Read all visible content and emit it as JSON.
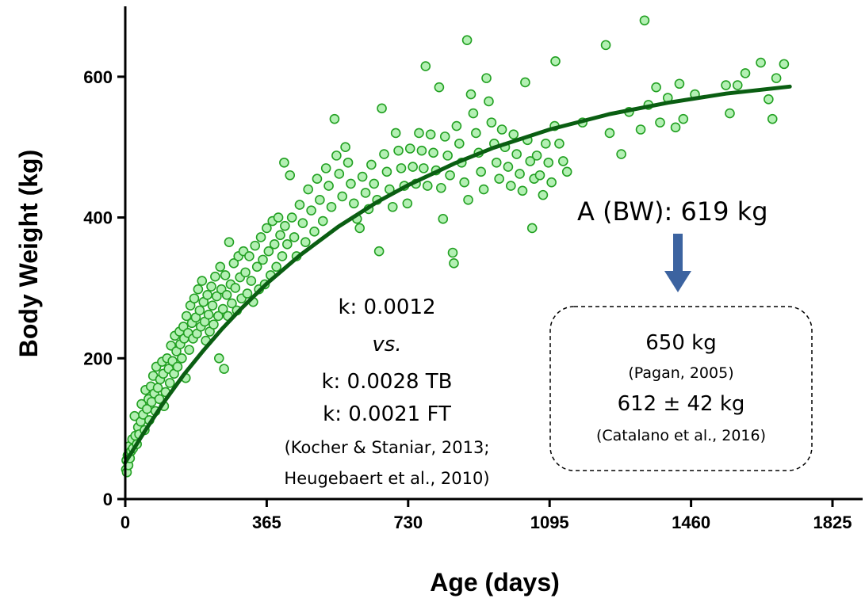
{
  "chart_data": {
    "type": "scatter",
    "xlabel": "Age (days)",
    "ylabel": "Body Weight (kg)",
    "xlim": [
      0,
      1825
    ],
    "ylim": [
      0,
      700
    ],
    "xticks": [
      0,
      365,
      730,
      1095,
      1460,
      1825
    ],
    "yticks": [
      0,
      200,
      400,
      600
    ],
    "grid": false,
    "colors": {
      "points_fill": "#b3f0b3",
      "points_stroke": "#22a022",
      "curve": "#0a5e12",
      "arrow": "#3c63a0"
    },
    "fit_curve": {
      "model": "monomolecular",
      "A": 619,
      "k": 0.0012,
      "x_start": 0,
      "x_end": 1715,
      "points": [
        [
          0,
          52
        ],
        [
          50,
          96
        ],
        [
          100,
          138
        ],
        [
          150,
          176
        ],
        [
          200,
          210
        ],
        [
          250,
          242
        ],
        [
          300,
          271
        ],
        [
          365,
          306
        ],
        [
          450,
          346
        ],
        [
          550,
          387
        ],
        [
          650,
          422
        ],
        [
          730,
          446
        ],
        [
          850,
          477
        ],
        [
          950,
          499
        ],
        [
          1095,
          525
        ],
        [
          1250,
          547
        ],
        [
          1400,
          563
        ],
        [
          1550,
          576
        ],
        [
          1715,
          586
        ]
      ]
    },
    "series": [
      {
        "values": [
          [
            2,
            42
          ],
          [
            3,
            55
          ],
          [
            4,
            38
          ],
          [
            6,
            62
          ],
          [
            8,
            48
          ],
          [
            10,
            75
          ],
          [
            12,
            58
          ],
          [
            15,
            68
          ],
          [
            18,
            85
          ],
          [
            20,
            72
          ],
          [
            24,
            118
          ],
          [
            26,
            90
          ],
          [
            30,
            78
          ],
          [
            33,
            102
          ],
          [
            36,
            92
          ],
          [
            40,
            110
          ],
          [
            42,
            135
          ],
          [
            46,
            120
          ],
          [
            50,
            98
          ],
          [
            52,
            155
          ],
          [
            56,
            128
          ],
          [
            60,
            142
          ],
          [
            62,
            112
          ],
          [
            66,
            160
          ],
          [
            68,
            138
          ],
          [
            72,
            175
          ],
          [
            75,
            150
          ],
          [
            78,
            125
          ],
          [
            80,
            188
          ],
          [
            84,
            158
          ],
          [
            88,
            142
          ],
          [
            90,
            170
          ],
          [
            95,
            195
          ],
          [
            98,
            178
          ],
          [
            100,
            132
          ],
          [
            104,
            152
          ],
          [
            108,
            200
          ],
          [
            112,
            185
          ],
          [
            115,
            165
          ],
          [
            118,
            218
          ],
          [
            122,
            196
          ],
          [
            126,
            178
          ],
          [
            128,
            232
          ],
          [
            132,
            210
          ],
          [
            135,
            188
          ],
          [
            140,
            238
          ],
          [
            142,
            220
          ],
          [
            146,
            200
          ],
          [
            150,
            245
          ],
          [
            152,
            228
          ],
          [
            156,
            172
          ],
          [
            158,
            260
          ],
          [
            162,
            236
          ],
          [
            165,
            212
          ],
          [
            168,
            275
          ],
          [
            172,
            250
          ],
          [
            175,
            228
          ],
          [
            178,
            285
          ],
          [
            182,
            258
          ],
          [
            185,
            235
          ],
          [
            188,
            298
          ],
          [
            192,
            268
          ],
          [
            195,
            245
          ],
          [
            198,
            310
          ],
          [
            202,
            280
          ],
          [
            205,
            252
          ],
          [
            208,
            225
          ],
          [
            212,
            290
          ],
          [
            215,
            262
          ],
          [
            218,
            238
          ],
          [
            222,
            302
          ],
          [
            225,
            275
          ],
          [
            228,
            248
          ],
          [
            232,
            316
          ],
          [
            236,
            288
          ],
          [
            240,
            260
          ],
          [
            242,
            200
          ],
          [
            245,
            330
          ],
          [
            248,
            298
          ],
          [
            252,
            270
          ],
          [
            255,
            185
          ],
          [
            258,
            318
          ],
          [
            262,
            290
          ],
          [
            265,
            260
          ],
          [
            268,
            365
          ],
          [
            272,
            305
          ],
          [
            275,
            278
          ],
          [
            280,
            335
          ],
          [
            284,
            300
          ],
          [
            288,
            268
          ],
          [
            292,
            345
          ],
          [
            296,
            315
          ],
          [
            300,
            285
          ],
          [
            305,
            352
          ],
          [
            310,
            322
          ],
          [
            315,
            292
          ],
          [
            320,
            345
          ],
          [
            325,
            310
          ],
          [
            330,
            280
          ],
          [
            335,
            360
          ],
          [
            340,
            330
          ],
          [
            345,
            298
          ],
          [
            350,
            372
          ],
          [
            355,
            340
          ],
          [
            360,
            305
          ],
          [
            365,
            385
          ],
          [
            370,
            352
          ],
          [
            375,
            318
          ],
          [
            380,
            395
          ],
          [
            385,
            362
          ],
          [
            390,
            330
          ],
          [
            395,
            400
          ],
          [
            400,
            375
          ],
          [
            405,
            345
          ],
          [
            410,
            478
          ],
          [
            412,
            388
          ],
          [
            418,
            362
          ],
          [
            425,
            460
          ],
          [
            430,
            400
          ],
          [
            436,
            372
          ],
          [
            442,
            345
          ],
          [
            450,
            418
          ],
          [
            458,
            392
          ],
          [
            465,
            365
          ],
          [
            472,
            440
          ],
          [
            480,
            410
          ],
          [
            488,
            380
          ],
          [
            495,
            455
          ],
          [
            502,
            425
          ],
          [
            510,
            395
          ],
          [
            518,
            470
          ],
          [
            525,
            445
          ],
          [
            532,
            415
          ],
          [
            540,
            540
          ],
          [
            545,
            488
          ],
          [
            552,
            462
          ],
          [
            560,
            430
          ],
          [
            568,
            500
          ],
          [
            575,
            478
          ],
          [
            582,
            448
          ],
          [
            590,
            420
          ],
          [
            598,
            398
          ],
          [
            605,
            385
          ],
          [
            612,
            458
          ],
          [
            620,
            435
          ],
          [
            628,
            412
          ],
          [
            635,
            475
          ],
          [
            642,
            448
          ],
          [
            650,
            425
          ],
          [
            655,
            352
          ],
          [
            662,
            555
          ],
          [
            668,
            490
          ],
          [
            675,
            465
          ],
          [
            682,
            440
          ],
          [
            690,
            415
          ],
          [
            698,
            520
          ],
          [
            705,
            495
          ],
          [
            712,
            470
          ],
          [
            720,
            445
          ],
          [
            728,
            420
          ],
          [
            735,
            498
          ],
          [
            742,
            472
          ],
          [
            750,
            448
          ],
          [
            758,
            520
          ],
          [
            765,
            495
          ],
          [
            770,
            470
          ],
          [
            775,
            615
          ],
          [
            780,
            445
          ],
          [
            788,
            518
          ],
          [
            795,
            492
          ],
          [
            802,
            467
          ],
          [
            810,
            585
          ],
          [
            815,
            442
          ],
          [
            820,
            398
          ],
          [
            825,
            515
          ],
          [
            832,
            488
          ],
          [
            838,
            460
          ],
          [
            845,
            350
          ],
          [
            848,
            335
          ],
          [
            855,
            530
          ],
          [
            862,
            505
          ],
          [
            868,
            478
          ],
          [
            875,
            450
          ],
          [
            882,
            652
          ],
          [
            885,
            425
          ],
          [
            892,
            575
          ],
          [
            898,
            548
          ],
          [
            905,
            520
          ],
          [
            912,
            492
          ],
          [
            918,
            465
          ],
          [
            925,
            440
          ],
          [
            932,
            598
          ],
          [
            938,
            565
          ],
          [
            945,
            535
          ],
          [
            952,
            505
          ],
          [
            958,
            478
          ],
          [
            965,
            455
          ],
          [
            972,
            525
          ],
          [
            980,
            500
          ],
          [
            988,
            472
          ],
          [
            995,
            445
          ],
          [
            1002,
            518
          ],
          [
            1010,
            490
          ],
          [
            1018,
            462
          ],
          [
            1025,
            438
          ],
          [
            1032,
            592
          ],
          [
            1038,
            510
          ],
          [
            1045,
            480
          ],
          [
            1050,
            385
          ],
          [
            1055,
            455
          ],
          [
            1062,
            488
          ],
          [
            1070,
            460
          ],
          [
            1078,
            432
          ],
          [
            1085,
            505
          ],
          [
            1092,
            478
          ],
          [
            1100,
            450
          ],
          [
            1108,
            530
          ],
          [
            1110,
            622
          ],
          [
            1120,
            505
          ],
          [
            1130,
            480
          ],
          [
            1140,
            465
          ],
          [
            1180,
            535
          ],
          [
            1240,
            645
          ],
          [
            1250,
            520
          ],
          [
            1280,
            490
          ],
          [
            1300,
            550
          ],
          [
            1330,
            525
          ],
          [
            1340,
            680
          ],
          [
            1350,
            560
          ],
          [
            1370,
            585
          ],
          [
            1380,
            535
          ],
          [
            1400,
            570
          ],
          [
            1420,
            528
          ],
          [
            1430,
            590
          ],
          [
            1440,
            540
          ],
          [
            1470,
            575
          ],
          [
            1550,
            588
          ],
          [
            1560,
            548
          ],
          [
            1580,
            588
          ],
          [
            1600,
            605
          ],
          [
            1640,
            620
          ],
          [
            1660,
            568
          ],
          [
            1670,
            540
          ],
          [
            1680,
            598
          ],
          [
            1700,
            618
          ]
        ]
      }
    ],
    "annotations": {
      "top_right": "A (BW): 619 kg",
      "k_lines": [
        "k: 0.0012",
        "vs.",
        "k: 0.0028 TB",
        "k: 0.0021 FT",
        "(Kocher & Staniar, 2013;",
        "Heugebaert et al., 2010)"
      ],
      "box_lines": [
        "650 kg",
        "(Pagan, 2005)",
        "612 ± 42 kg",
        "(Catalano et al., 2016)"
      ]
    }
  }
}
